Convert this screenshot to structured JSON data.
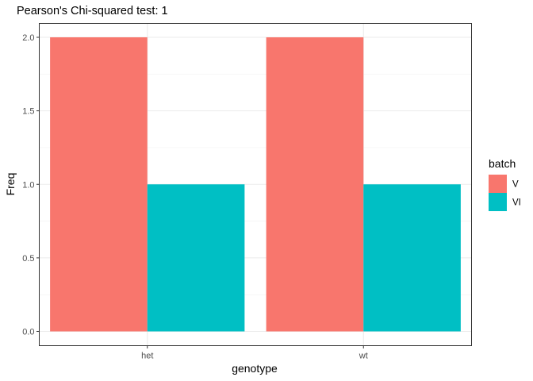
{
  "chart_data": {
    "type": "bar",
    "title": "Pearson's Chi-squared test: 1",
    "xlabel": "genotype",
    "ylabel": "Freq",
    "categories": [
      "het",
      "wt"
    ],
    "series": [
      {
        "name": "V",
        "values": [
          2,
          2
        ],
        "color": "#F8766D"
      },
      {
        "name": "VI",
        "values": [
          1,
          1
        ],
        "color": "#00BFC4"
      }
    ],
    "ylim": [
      0,
      2.0
    ],
    "yticks": [
      "0.0",
      "0.5",
      "1.0",
      "1.5",
      "2.0"
    ],
    "legend": {
      "title": "batch",
      "position": "right"
    },
    "grid": true,
    "theme": "bw"
  }
}
